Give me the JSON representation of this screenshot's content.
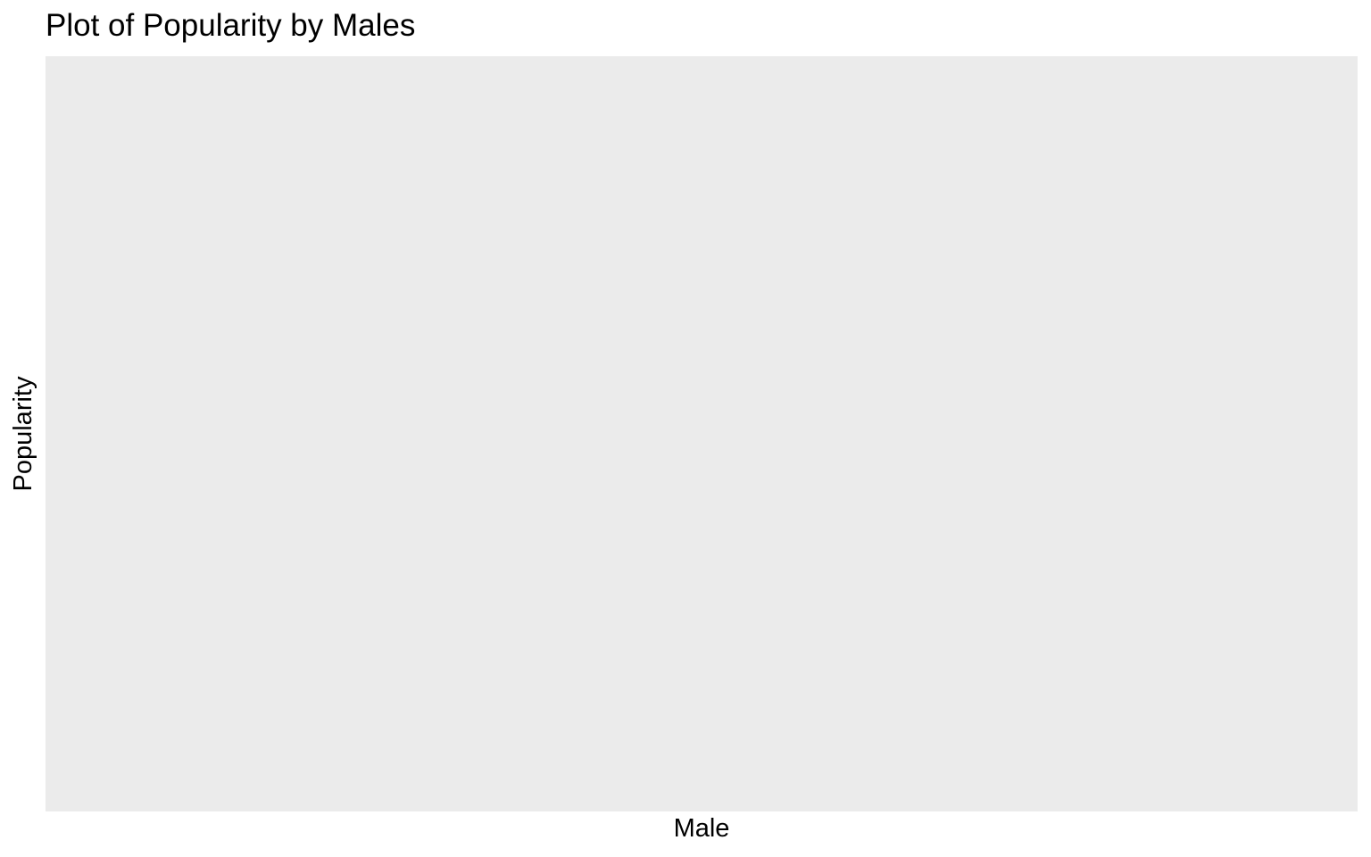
{
  "chart_data": {
    "type": "bar",
    "title": "Plot of Popularity by Males",
    "xlabel": "Male",
    "ylabel": "Popularity",
    "categories": [],
    "values": [],
    "grid": false,
    "legend": "none",
    "colors": {
      "panel_background": "#ebebeb",
      "page_background": "#ffffff",
      "text": "#000000"
    }
  }
}
